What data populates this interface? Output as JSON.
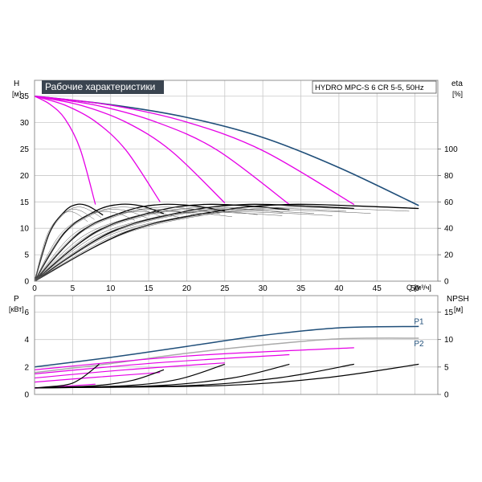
{
  "chart_data": [
    {
      "type": "line",
      "title": "Рабочие характеристики",
      "subtitle": "HYDRO MPC-S 6 CR 5-5, 50Hz",
      "xlabel": "Q [м³/ч]",
      "ylabel_left": "H",
      "ylabel_left_unit": "[м]",
      "ylabel_right": "eta",
      "ylabel_right_unit": "[%]",
      "xlim": [
        0,
        53
      ],
      "ylim_left": [
        0,
        38
      ],
      "ylim_right": [
        0,
        152
      ],
      "x_ticks": [
        "0",
        "5",
        "10",
        "15",
        "20",
        "25",
        "30",
        "35",
        "40",
        "45",
        "50"
      ],
      "y_left_ticks": [
        "0",
        "5",
        "10",
        "15",
        "20",
        "25",
        "30",
        "35"
      ],
      "y_right_ticks": [
        "0",
        "20",
        "40",
        "60",
        "80",
        "100"
      ],
      "grid": true,
      "colors": {
        "qh_full_speed": "#1f4e79",
        "qh_reduced": "#e600e6",
        "efficiency_black": "#000000",
        "efficiency_grey": "#444444"
      },
      "series": [
        {
          "kind": "qh",
          "pumps": 6,
          "color": "#1f4e79",
          "points": [
            [
              0,
              35
            ],
            [
              10,
              33.4
            ],
            [
              20,
              31
            ],
            [
              30,
              27.2
            ],
            [
              40,
              21.5
            ],
            [
              50.5,
              14.3
            ]
          ]
        },
        {
          "kind": "qh",
          "pumps": 1,
          "color": "#e600e6",
          "points": [
            [
              0,
              35
            ],
            [
              2,
              33.5
            ],
            [
              4,
              30.7
            ],
            [
              6,
              25
            ],
            [
              8,
              14.5
            ]
          ]
        },
        {
          "kind": "qh",
          "pumps": 2,
          "color": "#e600e6",
          "points": [
            [
              0,
              35
            ],
            [
              4,
              33.3
            ],
            [
              8,
              30.2
            ],
            [
              12,
              24.8
            ],
            [
              16.5,
              15
            ]
          ]
        },
        {
          "kind": "qh",
          "pumps": 3,
          "color": "#e600e6",
          "points": [
            [
              0,
              35
            ],
            [
              6,
              33.3
            ],
            [
              12,
              30.1
            ],
            [
              18,
              24.6
            ],
            [
              25,
              14.8
            ]
          ]
        },
        {
          "kind": "qh",
          "pumps": 4,
          "color": "#e600e6",
          "points": [
            [
              0,
              35
            ],
            [
              8,
              33.3
            ],
            [
              16,
              30.1
            ],
            [
              24,
              24.8
            ],
            [
              33.5,
              14.5
            ]
          ]
        },
        {
          "kind": "qh",
          "pumps": 5,
          "color": "#e600e6",
          "points": [
            [
              0,
              35
            ],
            [
              10,
              33.3
            ],
            [
              20,
              30.1
            ],
            [
              30,
              24.7
            ],
            [
              42,
              14.5
            ]
          ]
        },
        {
          "kind": "eta",
          "pumps": 1,
          "color": "#000000",
          "points": [
            [
              0,
              0
            ],
            [
              2,
              37
            ],
            [
              4,
              53
            ],
            [
              5.5,
              58
            ],
            [
              7,
              57
            ],
            [
              9,
              50
            ]
          ]
        },
        {
          "kind": "eta",
          "pumps": 2,
          "color": "#000000",
          "points": [
            [
              0,
              0
            ],
            [
              4,
              37
            ],
            [
              8,
              53
            ],
            [
              11,
              58
            ],
            [
              14,
              57
            ],
            [
              17,
              51
            ]
          ]
        },
        {
          "kind": "eta",
          "pumps": 3,
          "color": "#000000",
          "points": [
            [
              0,
              0
            ],
            [
              6,
              37
            ],
            [
              12,
              53
            ],
            [
              16.5,
              58
            ],
            [
              21,
              57
            ],
            [
              25,
              53
            ]
          ]
        },
        {
          "kind": "eta",
          "pumps": 4,
          "color": "#000000",
          "points": [
            [
              0,
              0
            ],
            [
              8,
              37
            ],
            [
              16,
              53
            ],
            [
              22,
              58
            ],
            [
              28,
              57
            ],
            [
              33.5,
              54
            ]
          ]
        },
        {
          "kind": "eta",
          "pumps": 5,
          "color": "#000000",
          "points": [
            [
              0,
              0
            ],
            [
              10,
              37
            ],
            [
              20,
              53
            ],
            [
              27.5,
              58
            ],
            [
              35,
              57
            ],
            [
              42,
              55
            ]
          ]
        },
        {
          "kind": "eta",
          "pumps": 6,
          "color": "#000000",
          "points": [
            [
              0,
              0
            ],
            [
              12,
              37
            ],
            [
              24,
              53
            ],
            [
              33,
              58
            ],
            [
              42,
              57
            ],
            [
              50.5,
              55
            ]
          ]
        }
      ]
    },
    {
      "type": "line",
      "xlim": [
        0,
        53
      ],
      "ylabel_left": "P",
      "ylabel_left_unit": "[кВт]",
      "ylabel_right": "NPSH",
      "ylabel_right_unit": "[м]",
      "ylim_left": [
        0,
        7.2
      ],
      "ylim_right": [
        0,
        18
      ],
      "y_left_ticks": [
        "0",
        "2",
        "4",
        "6"
      ],
      "y_right_ticks": [
        "0",
        "5",
        "10",
        "15"
      ],
      "grid": true,
      "curve_labels": [
        "P1",
        "P2"
      ],
      "series": [
        {
          "name": "P1",
          "kind": "power",
          "color": "#1f4e79",
          "points": [
            [
              0,
              2
            ],
            [
              10,
              2.7
            ],
            [
              20,
              3.5
            ],
            [
              30,
              4.3
            ],
            [
              40,
              4.85
            ],
            [
              50.5,
              4.95
            ]
          ]
        },
        {
          "name": "P2",
          "kind": "power",
          "color": "#aaaaaa",
          "points": [
            [
              0,
              1.6
            ],
            [
              10,
              2.25
            ],
            [
              20,
              3
            ],
            [
              30,
              3.6
            ],
            [
              40,
              4.05
            ],
            [
              50.5,
              4.1
            ]
          ]
        },
        {
          "kind": "power",
          "pumps": 1,
          "color": "#e600e6",
          "points": [
            [
              0,
              0.45
            ],
            [
              4,
              0.6
            ],
            [
              8,
              0.75
            ]
          ]
        },
        {
          "kind": "power",
          "pumps": 2,
          "color": "#e600e6",
          "points": [
            [
              0,
              0.9
            ],
            [
              8,
              1.25
            ],
            [
              16.5,
              1.6
            ]
          ]
        },
        {
          "kind": "power",
          "pumps": 3,
          "color": "#e600e6",
          "points": [
            [
              0,
              1.2
            ],
            [
              12,
              1.8
            ],
            [
              25,
              2.3
            ]
          ]
        },
        {
          "kind": "power",
          "pumps": 4,
          "color": "#e600e6",
          "points": [
            [
              0,
              1.5
            ],
            [
              16,
              2.3
            ],
            [
              33.5,
              2.9
            ]
          ]
        },
        {
          "kind": "power",
          "pumps": 5,
          "color": "#e600e6",
          "points": [
            [
              0,
              1.8
            ],
            [
              20,
              2.8
            ],
            [
              42,
              3.4
            ]
          ]
        },
        {
          "kind": "npsh",
          "pumps": 1,
          "color": "#000000",
          "points": [
            [
              0,
              1.2
            ],
            [
              4,
              1.7
            ],
            [
              6,
              2.8
            ],
            [
              8.5,
              5.5
            ]
          ]
        },
        {
          "kind": "npsh",
          "pumps": 2,
          "color": "#000000",
          "points": [
            [
              0,
              1.2
            ],
            [
              8,
              1.6
            ],
            [
              13,
              2.6
            ],
            [
              17,
              4.5
            ]
          ]
        },
        {
          "kind": "npsh",
          "pumps": 3,
          "color": "#000000",
          "points": [
            [
              0,
              1.2
            ],
            [
              12,
              1.6
            ],
            [
              19,
              2.8
            ],
            [
              25,
              5.5
            ]
          ]
        },
        {
          "kind": "npsh",
          "pumps": 4,
          "color": "#000000",
          "points": [
            [
              0,
              1.2
            ],
            [
              16,
              1.6
            ],
            [
              26,
              3
            ],
            [
              33.5,
              5.5
            ]
          ]
        },
        {
          "kind": "npsh",
          "pumps": 5,
          "color": "#000000",
          "points": [
            [
              0,
              1.2
            ],
            [
              20,
              1.6
            ],
            [
              32,
              3
            ],
            [
              42,
              5.5
            ]
          ]
        },
        {
          "kind": "npsh",
          "pumps": 6,
          "color": "#000000",
          "points": [
            [
              0,
              1.2
            ],
            [
              24,
              1.6
            ],
            [
              38,
              3
            ],
            [
              50.5,
              5.5
            ]
          ]
        }
      ]
    }
  ]
}
